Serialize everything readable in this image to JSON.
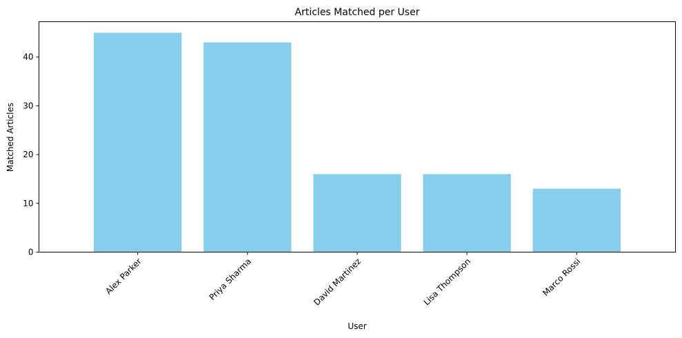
{
  "chart_data": {
    "type": "bar",
    "title": "Articles Matched per User",
    "xlabel": "User",
    "ylabel": "Matched Articles",
    "categories": [
      "Alex Parker",
      "Priya Sharma",
      "David Martinez",
      "Lisa Thompson",
      "Marco Rossi"
    ],
    "values": [
      45,
      43,
      16,
      16,
      13
    ],
    "yticks": [
      0,
      10,
      20,
      30,
      40
    ],
    "ylim": [
      0,
      47.25
    ],
    "grid": false,
    "legend": "none",
    "xtick_rotation_deg": 45,
    "bar_color": "#87CEEB"
  }
}
